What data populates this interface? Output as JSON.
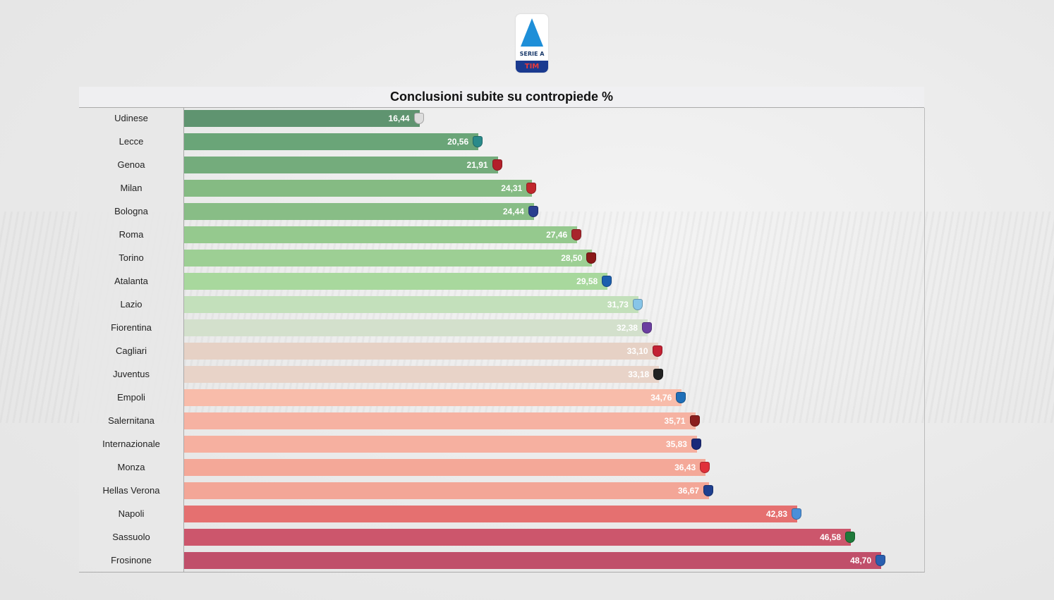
{
  "logo": {
    "text": "SERIE A",
    "sponsor": "TIM"
  },
  "chart_data": {
    "type": "bar",
    "orientation": "horizontal",
    "title": "Conclusioni subite su contropiede %",
    "xlim": [
      0,
      51.7
    ],
    "grid": false,
    "categories": [
      "Udinese",
      "Lecce",
      "Genoa",
      "Milan",
      "Bologna",
      "Roma",
      "Torino",
      "Atalanta",
      "Lazio",
      "Fiorentina",
      "Cagliari",
      "Juventus",
      "Empoli",
      "Salernitana",
      "Internazionale",
      "Monza",
      "Hellas Verona",
      "Napoli",
      "Sassuolo",
      "Frosinone"
    ],
    "values": [
      16.44,
      20.56,
      21.91,
      24.31,
      24.44,
      27.46,
      28.5,
      29.58,
      31.73,
      32.38,
      33.1,
      33.18,
      34.76,
      35.71,
      35.83,
      36.43,
      36.67,
      42.83,
      46.58,
      48.7
    ],
    "colors": [
      "#5f9470",
      "#6aa578",
      "#74ac7c",
      "#85bb83",
      "#88bd86",
      "#95c98e",
      "#9dcf94",
      "#a8d89d",
      "#c3e0bb",
      "#d3e0cc",
      "#e6d1c5",
      "#e8d3c8",
      "#f8bcaa",
      "#f6b2a2",
      "#f6b0a0",
      "#f4a898",
      "#f3a697",
      "#e57070",
      "#cc566c",
      "#c04f6a"
    ],
    "crest_colors": [
      "#dddddd",
      "#2a8a8a",
      "#b3202a",
      "#c0282d",
      "#2a3f8f",
      "#a8262c",
      "#8b1a1a",
      "#1c5fae",
      "#87c5e8",
      "#6b3fa0",
      "#c32133",
      "#222222",
      "#1f6fb8",
      "#8b1e1e",
      "#1a2a7a",
      "#e0303a",
      "#1e3f8f",
      "#4a8fd8",
      "#1f7a3a",
      "#2a5fb0"
    ]
  }
}
